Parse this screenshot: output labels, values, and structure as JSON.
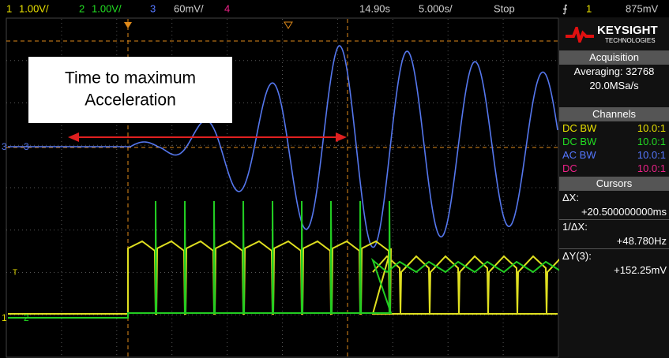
{
  "top_bar": {
    "ch1_label": "1",
    "ch1_scale": "1.00V/",
    "ch2_label": "2",
    "ch2_scale": "1.00V/",
    "ch3_label": "3",
    "ch3_scale": "60mV/",
    "ch4_label": "4",
    "time_delay": "14.90s",
    "time_scale": "5.000s/",
    "run_state": "Stop",
    "trigger_source": "1",
    "trigger_level": "875mV"
  },
  "annotation": {
    "lines": [
      "Time to maximum",
      "Acceleration"
    ]
  },
  "markers": {
    "ch3": "3",
    "trigger": "T",
    "ch2": "2",
    "ch1": "1"
  },
  "side_panel": {
    "brand": "KEYSIGHT",
    "brand_sub": "TECHNOLOGIES",
    "acquisition": {
      "title": "Acquisition",
      "mode": "Averaging: 32768",
      "rate": "20.0MSa/s"
    },
    "channels": {
      "title": "Channels",
      "rows": [
        [
          "DC BW",
          "10.0:1"
        ],
        [
          "DC BW",
          "10.0:1"
        ],
        [
          "AC BW",
          "10.0:1"
        ],
        [
          "DC",
          "10.0:1"
        ]
      ]
    },
    "cursors": {
      "title": "Cursors",
      "dx_label": "ΔX:",
      "dx_value": "+20.500000000ms",
      "inv_label": "1/ΔX:",
      "inv_value": "+48.780Hz",
      "dy_label": "ΔY(3):",
      "dy_value": "+152.25mV"
    }
  }
}
